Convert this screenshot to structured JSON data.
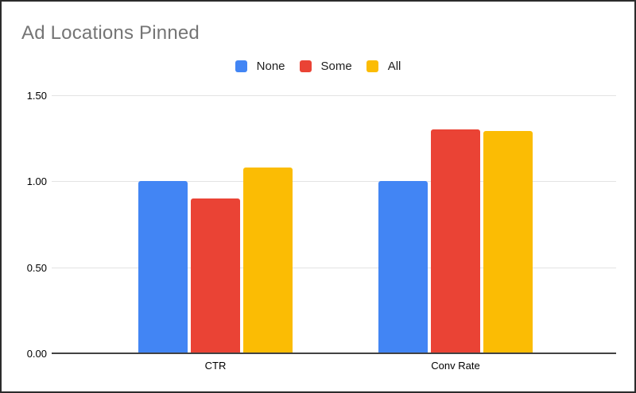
{
  "window": {
    "background": "#ffffff",
    "border_color": "#2b2b2b"
  },
  "chart_data": {
    "type": "bar",
    "title": "Ad Locations Pinned",
    "title_color": "#757575",
    "xlabel": "",
    "ylabel": "",
    "categories": [
      "CTR",
      "Conv Rate"
    ],
    "series": [
      {
        "name": "None",
        "color": "#4285F4",
        "values": [
          1.0,
          1.0
        ]
      },
      {
        "name": "Some",
        "color": "#EA4335",
        "values": [
          0.9,
          1.3
        ]
      },
      {
        "name": "All",
        "color": "#FBBC04",
        "values": [
          1.08,
          1.29
        ]
      }
    ],
    "ylim": [
      0,
      1.5
    ],
    "y_ticks": [
      {
        "value": 0.0,
        "label": "0.00"
      },
      {
        "value": 0.5,
        "label": "0.50"
      },
      {
        "value": 1.0,
        "label": "1.00"
      },
      {
        "value": 1.5,
        "label": "1.50"
      }
    ],
    "grid": true,
    "legend_position": "top-center",
    "gridline_color": "#e3e3e3",
    "baseline_color": "#424242",
    "tick_label_color": "#000000",
    "category_label_color": "#000000"
  }
}
